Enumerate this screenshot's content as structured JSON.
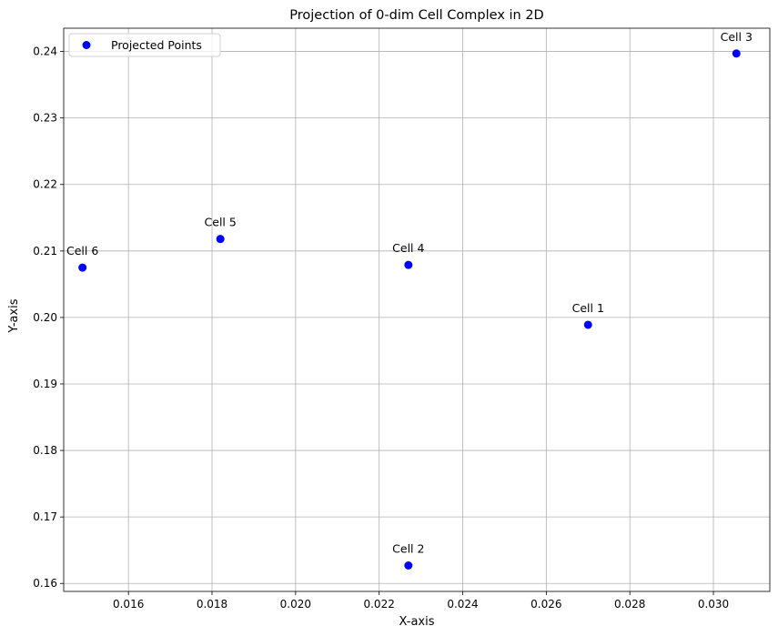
{
  "chart_data": {
    "type": "scatter",
    "title": "Projection of 0-dim Cell Complex in 2D",
    "xlabel": "X-axis",
    "ylabel": "Y-axis",
    "xlim": [
      0.01445,
      0.03135
    ],
    "ylim": [
      0.1588,
      0.2435
    ],
    "x_ticks": [
      0.016,
      0.018,
      0.02,
      0.022,
      0.024,
      0.026,
      0.028,
      0.03
    ],
    "x_tick_labels": [
      "0.016",
      "0.018",
      "0.020",
      "0.022",
      "0.024",
      "0.026",
      "0.028",
      "0.030"
    ],
    "y_ticks": [
      0.16,
      0.17,
      0.18,
      0.19,
      0.2,
      0.21,
      0.22,
      0.23,
      0.24
    ],
    "y_tick_labels": [
      "0.16",
      "0.17",
      "0.18",
      "0.19",
      "0.20",
      "0.21",
      "0.22",
      "0.23",
      "0.24"
    ],
    "grid": true,
    "legend": {
      "position": "top-left",
      "entries": [
        "Projected Points"
      ]
    },
    "series": [
      {
        "name": "Projected Points",
        "color": "#0000ff",
        "points": [
          {
            "label": "Cell 1",
            "x": 0.027,
            "y": 0.1989
          },
          {
            "label": "Cell 2",
            "x": 0.0227,
            "y": 0.1627
          },
          {
            "label": "Cell 3",
            "x": 0.03055,
            "y": 0.2397
          },
          {
            "label": "Cell 4",
            "x": 0.0227,
            "y": 0.2079
          },
          {
            "label": "Cell 5",
            "x": 0.0182,
            "y": 0.2118
          },
          {
            "label": "Cell 6",
            "x": 0.0149,
            "y": 0.2075
          }
        ]
      }
    ]
  }
}
